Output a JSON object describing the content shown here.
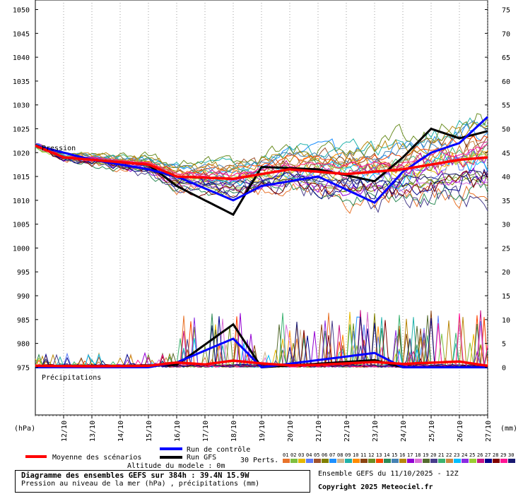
{
  "chart_data": {
    "type": "line",
    "left_axis": {
      "unit": "(hPa)",
      "range": [
        965,
        1052
      ],
      "ticks": [
        975,
        980,
        985,
        990,
        995,
        1000,
        1005,
        1010,
        1015,
        1020,
        1025,
        1030,
        1035,
        1040,
        1045,
        1050
      ]
    },
    "right_axis": {
      "unit": "(mm)",
      "range": [
        -10,
        77
      ],
      "ticks": [
        0,
        5,
        10,
        15,
        20,
        25,
        30,
        35,
        40,
        45,
        50,
        55,
        60,
        65,
        70,
        75
      ]
    },
    "dates": [
      "12/10",
      "13/10",
      "14/10",
      "15/10",
      "16/10",
      "17/10",
      "18/10",
      "19/10",
      "20/10",
      "21/10",
      "22/10",
      "23/10",
      "24/10",
      "25/10",
      "26/10",
      "27/10"
    ],
    "time_steps": 129,
    "grid": "vertical dotted per day",
    "annotations": [
      "Pression",
      "Précipitations"
    ],
    "series": [
      {
        "name": "Moyenne des scénarios",
        "color": "#ff0000",
        "kind": "mean",
        "pressure_keypoints": [
          [
            0,
            1021.5
          ],
          [
            8,
            1019
          ],
          [
            16,
            1018.5
          ],
          [
            32,
            1017.5
          ],
          [
            40,
            1015
          ],
          [
            56,
            1014.5
          ],
          [
            72,
            1016.5
          ],
          [
            88,
            1015.5
          ],
          [
            104,
            1016.5
          ],
          [
            112,
            1017.5
          ],
          [
            120,
            1018.5
          ],
          [
            128,
            1019
          ]
        ],
        "precip_keypoints": [
          [
            0,
            0.3
          ],
          [
            16,
            0.2
          ],
          [
            32,
            0.3
          ],
          [
            40,
            1
          ],
          [
            48,
            0.6
          ],
          [
            56,
            1.4
          ],
          [
            64,
            0.8
          ],
          [
            72,
            0.4
          ],
          [
            80,
            0.5
          ],
          [
            96,
            1.1
          ],
          [
            104,
            0.7
          ],
          [
            120,
            1.2
          ],
          [
            128,
            0.3
          ]
        ]
      },
      {
        "name": "Run de contrôle",
        "color": "#0000ff",
        "kind": "control",
        "pressure_keypoints": [
          [
            0,
            1021.5
          ],
          [
            16,
            1018.5
          ],
          [
            32,
            1016.5
          ],
          [
            40,
            1015
          ],
          [
            56,
            1010
          ],
          [
            64,
            1013
          ],
          [
            80,
            1015
          ],
          [
            96,
            1009.5
          ],
          [
            104,
            1016
          ],
          [
            112,
            1020
          ],
          [
            120,
            1022
          ],
          [
            128,
            1027.5
          ]
        ],
        "precip_keypoints": [
          [
            0,
            0
          ],
          [
            32,
            0
          ],
          [
            40,
            1
          ],
          [
            56,
            6
          ],
          [
            64,
            0
          ],
          [
            96,
            3
          ],
          [
            104,
            0
          ],
          [
            128,
            0
          ]
        ]
      },
      {
        "name": "Run GFS",
        "color": "#000000",
        "kind": "gfs",
        "pressure_keypoints": [
          [
            0,
            1021.5
          ],
          [
            16,
            1018.5
          ],
          [
            32,
            1017.5
          ],
          [
            40,
            1013
          ],
          [
            56,
            1007
          ],
          [
            64,
            1017
          ],
          [
            80,
            1016.5
          ],
          [
            96,
            1014
          ],
          [
            104,
            1019
          ],
          [
            112,
            1025
          ],
          [
            120,
            1023
          ],
          [
            128,
            1024.5
          ]
        ],
        "precip_keypoints": [
          [
            0,
            0
          ],
          [
            40,
            0.5
          ],
          [
            56,
            9
          ],
          [
            64,
            0
          ],
          [
            96,
            1.5
          ],
          [
            104,
            0
          ],
          [
            128,
            0
          ]
        ]
      }
    ]
  },
  "legend": {
    "mean_label": "Moyenne des scénarios",
    "control_label": "Run de contrôle",
    "gfs_label": "Run GFS",
    "altitude_label": "Altitude du modele : 0m",
    "perts_label": "30 Perts.",
    "member_labels": [
      "01",
      "02",
      "03",
      "04",
      "05",
      "06",
      "07",
      "08",
      "09",
      "10",
      "11",
      "12",
      "13",
      "14",
      "15",
      "16",
      "17",
      "18",
      "19",
      "20",
      "21",
      "22",
      "23",
      "24",
      "25",
      "26",
      "27",
      "28",
      "29",
      "30"
    ],
    "member_colors": [
      "#e8732a",
      "#7fbf3f",
      "#e6b800",
      "#5c7cfa",
      "#a0522d",
      "#808000",
      "#1e90ff",
      "#d2b48c",
      "#20b2aa",
      "#ff8c00",
      "#8b4513",
      "#6b8e23",
      "#ff4500",
      "#2e8b57",
      "#4682b4",
      "#b8860b",
      "#9400d3",
      "#da70d6",
      "#556b2f",
      "#483d8b",
      "#3cb371",
      "#cd853f",
      "#00bfff",
      "#8a2be2",
      "#9acd32",
      "#c71585",
      "#00008b",
      "#800000",
      "#ff1493",
      "#191970"
    ]
  },
  "footer": {
    "title": "Diagramme des ensembles GEFS sur 384h : 39.4N 15.9W",
    "subtitle": "Pression au niveau de la mer (hPa) , précipitations (mm)",
    "run_info": "Ensemble GEFS du 11/10/2025 - 12Z",
    "copyright": "Copyright 2025 Meteociel.fr"
  }
}
